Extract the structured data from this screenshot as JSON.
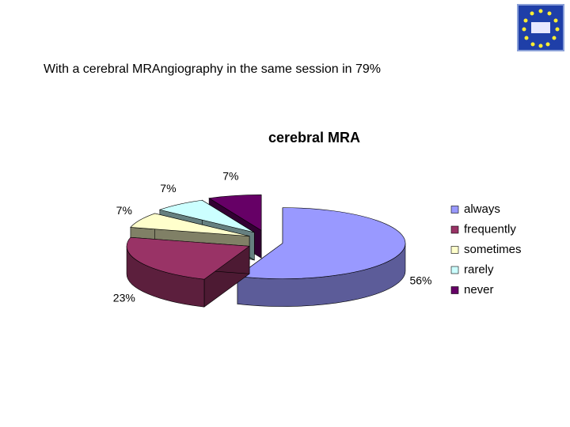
{
  "slide_text": "With a cerebral  MRAngiography in the same session in 79%",
  "chart_data": {
    "type": "pie",
    "title": "cerebral MRA",
    "categories": [
      "always",
      "frequently",
      "sometimes",
      "rarely",
      "never"
    ],
    "values": [
      56,
      23,
      7,
      7,
      7
    ],
    "value_labels": [
      "56%",
      "23%",
      "7%",
      "7%",
      "7%"
    ],
    "colors": [
      "#9999ff",
      "#993366",
      "#ffffcc",
      "#ccffff",
      "#660066"
    ],
    "legend": "right"
  }
}
